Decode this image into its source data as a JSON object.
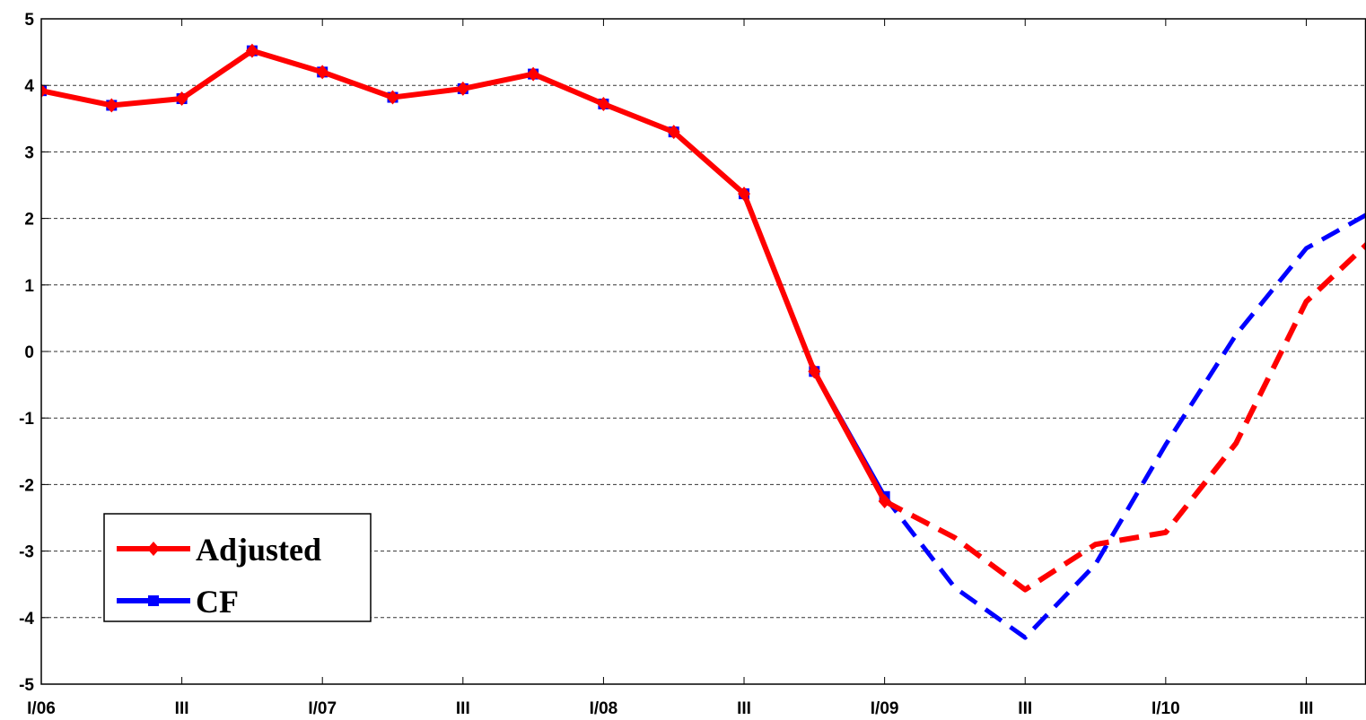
{
  "chart_data": {
    "type": "line",
    "x": [
      0,
      1,
      2,
      3,
      4,
      5,
      6,
      7,
      8,
      9,
      10,
      11,
      12,
      13,
      14,
      15,
      16,
      17,
      18,
      19
    ],
    "xlim": [
      0,
      18.85
    ],
    "xticks": [
      {
        "value": 0,
        "label": "I/06"
      },
      {
        "value": 2,
        "label": "III"
      },
      {
        "value": 4,
        "label": "I/07"
      },
      {
        "value": 6,
        "label": "III"
      },
      {
        "value": 8,
        "label": "I/08"
      },
      {
        "value": 10,
        "label": "III"
      },
      {
        "value": 12,
        "label": "I/09"
      },
      {
        "value": 14,
        "label": "III"
      },
      {
        "value": 16,
        "label": "I/10"
      },
      {
        "value": 18,
        "label": "III"
      }
    ],
    "ylim": [
      -5,
      5
    ],
    "yticks": [
      -5,
      -4,
      -3,
      -2,
      -1,
      0,
      1,
      2,
      3,
      4,
      5
    ],
    "grid": true,
    "forecast_start_x": 12,
    "legend": "lower left",
    "series": [
      {
        "name": "CF",
        "color": "#0000ff",
        "marker": "square",
        "values": [
          3.92,
          3.7,
          3.8,
          4.52,
          4.2,
          3.82,
          3.95,
          4.17,
          3.72,
          3.3,
          2.37,
          -0.3,
          -2.18,
          -3.55,
          -4.3,
          -3.2,
          -1.4,
          0.25,
          1.55,
          2.14
        ]
      },
      {
        "name": "Adjusted",
        "color": "#ff0000",
        "marker": "diamond",
        "values": [
          3.92,
          3.7,
          3.8,
          4.52,
          4.2,
          3.82,
          3.95,
          4.17,
          3.72,
          3.3,
          2.37,
          -0.3,
          -2.25,
          -2.8,
          -3.58,
          -2.9,
          -2.72,
          -1.38,
          0.75,
          1.75
        ]
      }
    ]
  }
}
